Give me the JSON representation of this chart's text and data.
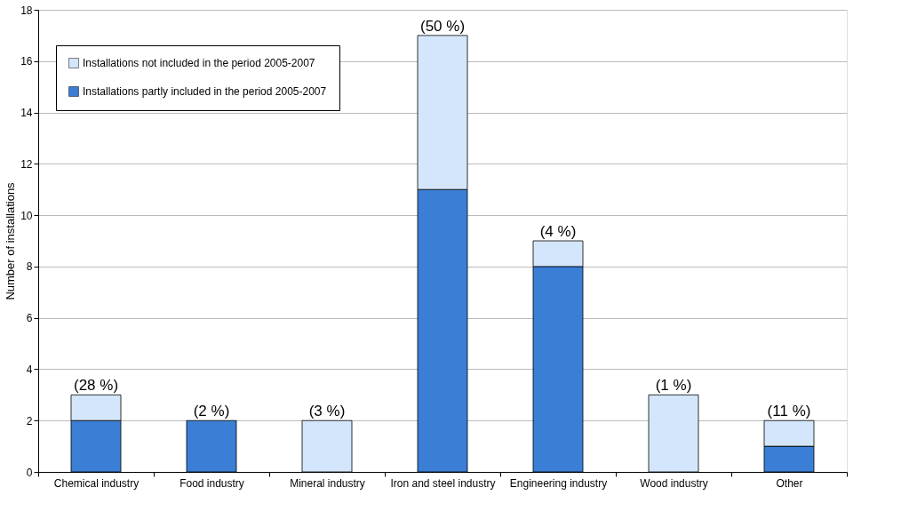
{
  "chart_data": {
    "type": "bar",
    "stacked": true,
    "ylabel": "Number of installations",
    "categories": [
      "Chemical industry",
      "Food industry",
      "Mineral industry",
      "Iron and steel industry",
      "Engineering industry",
      "Wood industry",
      "Other"
    ],
    "series": [
      {
        "name": "Installations partly included in the period 2005-2007",
        "color": "#3a7ed6",
        "values": [
          2,
          2,
          0,
          11,
          8,
          0,
          1
        ]
      },
      {
        "name": "Installations not included in the period 2005-2007",
        "color": "#d4e6fb",
        "values": [
          1,
          0,
          2,
          6,
          1,
          3,
          1
        ]
      }
    ],
    "annotations": [
      {
        "text": "(28 %)",
        "x": "Chemical industry",
        "y": 3
      },
      {
        "text": "(2 %)",
        "x": "Food industry",
        "y": 2
      },
      {
        "text": "(3 %)",
        "x": "Mineral industry",
        "y": 2
      },
      {
        "text": "(50 %)",
        "x": "Iron and steel industry",
        "y": 17
      },
      {
        "text": "(4 %)",
        "x": "Engineering industry",
        "y": 9
      },
      {
        "text": "(1 %)",
        "x": "Wood industry",
        "y": 3
      },
      {
        "text": "(11 %)",
        "x": "Other",
        "y": 2
      }
    ],
    "ylim": [
      0,
      18
    ],
    "yticks": [
      0,
      2,
      4,
      6,
      8,
      10,
      12,
      14,
      16,
      18
    ],
    "grid": "y",
    "legend": "top left"
  }
}
